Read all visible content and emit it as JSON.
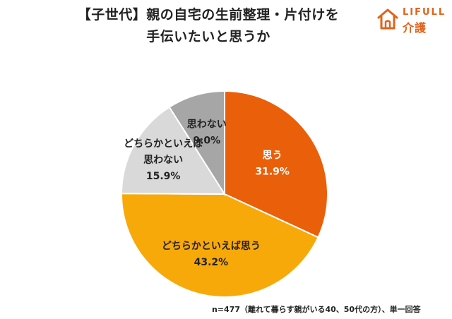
{
  "header": {
    "title_line1": "【子世代】親の自宅の生前整理・片付けを",
    "title_line2": "手伝いたいと思うか"
  },
  "logo": {
    "brand": "LIFULL",
    "sub": "介護",
    "icon": "house-icon",
    "color": "#e2631a"
  },
  "chart_data": {
    "type": "pie",
    "slices": [
      {
        "label": "思う",
        "value": 31.9,
        "value_label": "31.9%",
        "color": "#ea5f0a",
        "label_color": "#ffffff"
      },
      {
        "label": "どちらかといえば思う",
        "value": 43.2,
        "value_label": "43.2%",
        "color": "#f8a90a",
        "label_color": "#222222"
      },
      {
        "label": "どちらかといえば思わない",
        "label_line1": "どちらかといえば",
        "label_line2": "思わない",
        "value": 15.9,
        "value_label": "15.9%",
        "color": "#d9d9d9",
        "label_color": "#222222"
      },
      {
        "label": "思わない",
        "value": 9.0,
        "value_label": "9.0%",
        "color": "#a6a6a6",
        "label_color": "#222222"
      }
    ],
    "start": "12 o'clock",
    "direction": "clockwise"
  },
  "footnote": "n=477（離れて暮らす親がいる40、50代の方）、単一回答"
}
